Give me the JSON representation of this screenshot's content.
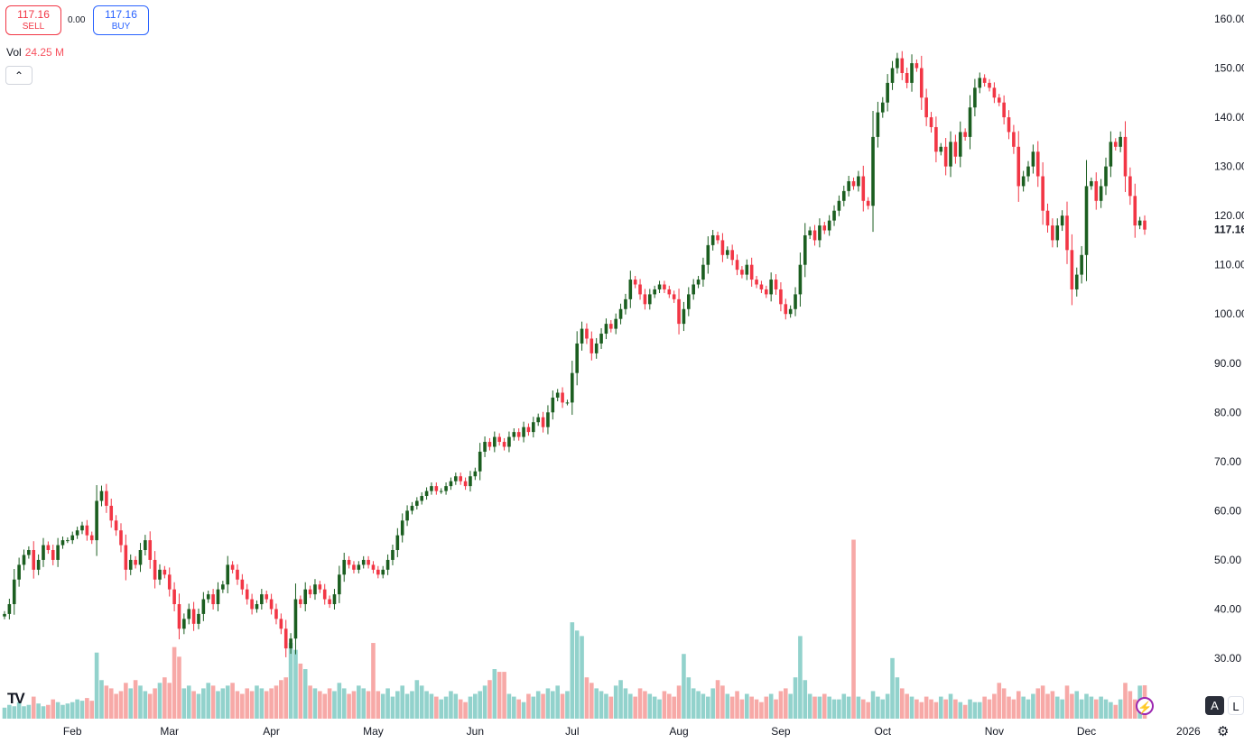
{
  "header": {
    "sell_price": "117.16",
    "sell_label": "SELL",
    "spread": "0.00",
    "buy_price": "117.16",
    "buy_label": "BUY",
    "vol_label": "Vol",
    "vol_value": "24.25 M",
    "collapse_icon": "chevron-up-icon"
  },
  "buttons": {
    "auto": "A",
    "log": "L"
  },
  "chart_data": {
    "type": "candlestick",
    "last_price_label": "117.16",
    "price_ticks": [
      "160.00",
      "150.00",
      "140.00",
      "130.00",
      "120.00",
      "110.00",
      "100.00",
      "90.00",
      "80.00",
      "70.00",
      "60.00",
      "50.00",
      "40.00",
      "30.00"
    ],
    "ylim": [
      30,
      160
    ],
    "x_labels": [
      {
        "label": "Feb",
        "index": 14
      },
      {
        "label": "Mar",
        "index": 34
      },
      {
        "label": "Apr",
        "index": 55
      },
      {
        "label": "May",
        "index": 76
      },
      {
        "label": "Jun",
        "index": 97
      },
      {
        "label": "Jul",
        "index": 117
      },
      {
        "label": "Aug",
        "index": 139
      },
      {
        "label": "Sep",
        "index": 160
      },
      {
        "label": "Oct",
        "index": 181
      },
      {
        "label": "Nov",
        "index": 204
      },
      {
        "label": "Dec",
        "index": 223
      },
      {
        "label": "2026",
        "index": 244
      }
    ],
    "colors": {
      "up": "#1b5e20",
      "down": "#f23645",
      "vol_up": "#92d2cc",
      "vol_down": "#f7a9a7"
    },
    "first_open": 38.5,
    "closes": [
      39,
      41,
      46,
      49,
      51,
      52,
      48,
      50,
      53,
      52,
      50,
      53,
      54,
      54,
      55,
      56,
      57,
      55,
      54,
      62,
      64,
      61,
      58,
      56,
      53,
      48,
      50,
      49,
      52,
      54,
      50,
      46,
      48,
      47,
      44,
      41,
      36,
      38,
      40,
      37,
      39,
      42,
      43,
      41,
      44,
      45,
      49,
      48,
      46,
      44,
      42,
      40,
      41,
      43,
      42,
      40,
      38,
      36,
      32,
      34,
      42,
      41,
      44,
      43,
      45,
      44,
      42,
      41,
      43,
      47,
      50,
      49,
      48,
      49,
      50,
      49,
      48,
      47,
      48,
      50,
      52,
      55,
      58,
      60,
      61,
      62,
      63,
      64,
      65,
      64,
      64,
      65,
      66,
      67,
      66,
      65,
      67,
      68,
      72,
      74,
      73,
      75,
      74,
      73,
      75,
      76,
      75,
      77,
      76,
      78,
      79,
      77,
      80,
      83,
      84,
      82,
      82,
      88,
      94,
      97,
      95,
      92,
      94,
      96,
      98,
      97,
      99,
      101,
      103,
      107,
      106,
      104,
      102,
      104,
      105,
      106,
      105,
      104,
      103,
      98,
      101,
      104,
      106,
      107,
      110,
      114,
      116,
      115,
      112,
      113,
      111,
      109,
      108,
      110,
      107,
      106,
      105,
      104,
      107,
      105,
      102,
      100,
      101,
      104,
      110,
      116,
      117,
      115,
      118,
      117,
      119,
      121,
      123,
      125,
      127,
      126,
      128,
      123,
      122,
      136,
      141,
      143,
      147,
      150,
      152,
      149,
      147,
      151,
      150,
      144,
      140,
      138,
      133,
      134,
      130,
      135,
      132,
      137,
      136,
      142,
      146,
      148,
      147,
      146,
      144,
      143,
      140,
      137,
      134,
      126,
      128,
      130,
      133,
      128,
      121,
      118,
      115,
      118,
      120,
      113,
      105,
      108,
      112,
      126,
      127,
      123,
      126,
      130,
      135,
      134,
      136,
      128,
      124,
      118,
      119,
      117.16
    ],
    "volumes_m": [
      8,
      10,
      9,
      12,
      9,
      10,
      16,
      11,
      9,
      10,
      14,
      12,
      10,
      11,
      12,
      14,
      13,
      15,
      13,
      48,
      28,
      24,
      22,
      18,
      20,
      26,
      22,
      28,
      24,
      20,
      18,
      22,
      26,
      30,
      26,
      52,
      45,
      22,
      24,
      20,
      18,
      22,
      26,
      24,
      20,
      22,
      24,
      26,
      20,
      18,
      22,
      20,
      24,
      22,
      20,
      22,
      24,
      28,
      30,
      55,
      50,
      40,
      36,
      24,
      22,
      20,
      18,
      22,
      20,
      26,
      22,
      18,
      20,
      24,
      22,
      20,
      55,
      20,
      18,
      22,
      16,
      20,
      24,
      18,
      20,
      28,
      24,
      20,
      18,
      16,
      14,
      16,
      20,
      18,
      14,
      12,
      16,
      18,
      20,
      24,
      28,
      36,
      34,
      34,
      18,
      16,
      14,
      12,
      18,
      16,
      20,
      18,
      22,
      20,
      24,
      18,
      20,
      70,
      64,
      60,
      30,
      26,
      22,
      20,
      18,
      16,
      24,
      28,
      22,
      18,
      16,
      22,
      20,
      18,
      16,
      14,
      20,
      18,
      16,
      24,
      47,
      30,
      22,
      20,
      18,
      16,
      22,
      28,
      24,
      18,
      16,
      20,
      14,
      18,
      16,
      14,
      12,
      16,
      18,
      14,
      20,
      22,
      18,
      30,
      60,
      28,
      18,
      16,
      16,
      18,
      16,
      14,
      14,
      18,
      16,
      130,
      16,
      14,
      12,
      20,
      16,
      14,
      18,
      44,
      30,
      22,
      18,
      16,
      14,
      12,
      16,
      14,
      12,
      16,
      14,
      18,
      14,
      12,
      10,
      14,
      12,
      12,
      16,
      14,
      18,
      26,
      22,
      16,
      14,
      20,
      16,
      14,
      18,
      22,
      24,
      18,
      20,
      16,
      14,
      24,
      18,
      20,
      14,
      18,
      16,
      14,
      16,
      14,
      12,
      10,
      14,
      26,
      20,
      14,
      24,
      24.25
    ]
  }
}
